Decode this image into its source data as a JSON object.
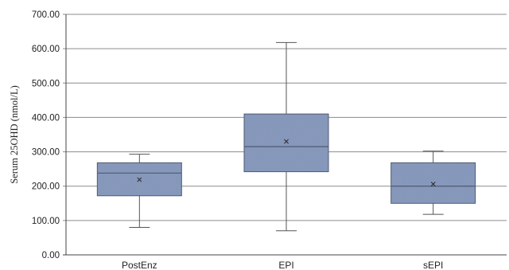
{
  "chart_data": {
    "type": "box",
    "title": "",
    "xlabel": "",
    "ylabel": "Serum 25OHD (nmol/L)",
    "ylim": [
      0,
      700
    ],
    "yticks": [
      "0.00",
      "100.00",
      "200.00",
      "300.00",
      "400.00",
      "500.00",
      "600.00",
      "700.00"
    ],
    "grid": true,
    "categories": [
      "PostEnz",
      "EPI",
      "sEPI"
    ],
    "boxes": [
      {
        "category": "PostEnz",
        "min": 80,
        "q1": 172,
        "median": 238,
        "q3": 268,
        "max": 293,
        "mean": 219
      },
      {
        "category": "EPI",
        "min": 70,
        "q1": 242,
        "median": 315,
        "q3": 410,
        "max": 618,
        "mean": 330
      },
      {
        "category": "sEPI",
        "min": 118,
        "q1": 150,
        "median": 200,
        "q3": 268,
        "max": 302,
        "mean": 206
      }
    ],
    "colors": {
      "box_fill": "#8a9bbd",
      "box_edge": "#4f5a72",
      "whisker": "#555555",
      "grid": "#8c8c8c",
      "axis": "#444444",
      "mean_marker": "#2b2b2b"
    }
  }
}
